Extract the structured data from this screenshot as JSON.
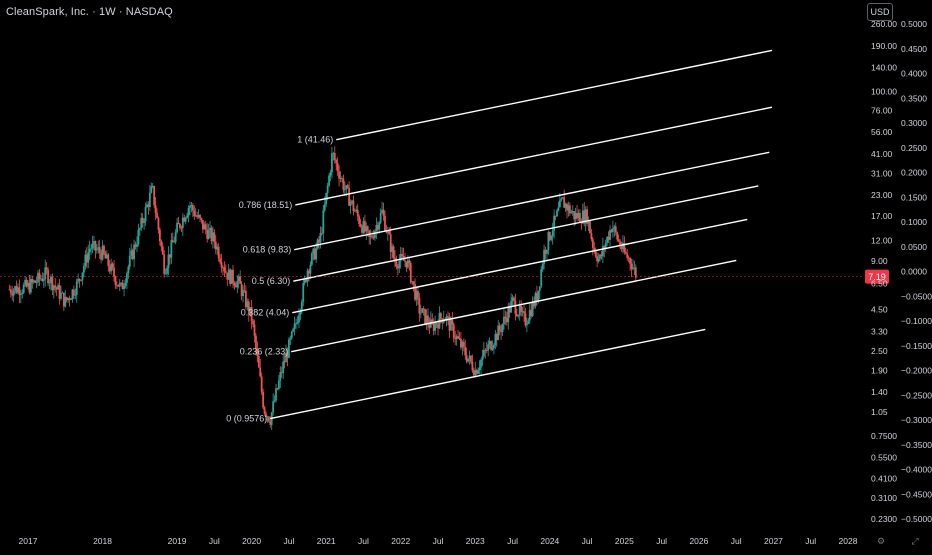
{
  "header": {
    "title": "CleanSpark, Inc. · 1W · NASDAQ"
  },
  "currency_button": {
    "label": "USD"
  },
  "colors": {
    "background": "#000000",
    "up_candle": "#26a69a",
    "down_candle": "#ef5350",
    "channel_lines": "#ffffff",
    "axis_text": "#d1d4dc",
    "price_tag": "#f23645"
  },
  "chart_data": {
    "type": "candlestick",
    "symbol": "CleanSpark, Inc.",
    "interval": "1W",
    "exchange": "NASDAQ",
    "price_scale": "log",
    "price_axis_ticks": [
      "260.00",
      "190.00",
      "140.00",
      "100.00",
      "76.00",
      "56.00",
      "41.00",
      "31.00",
      "23.00",
      "17.00",
      "12.00",
      "9.00",
      "6.50",
      "4.50",
      "3.30",
      "2.50",
      "1.90",
      "1.40",
      "1.05",
      "0.7500",
      "0.5500",
      "0.4100",
      "0.3100",
      "0.2300"
    ],
    "secondary_axis_ticks": [
      "0.5000",
      "0.4500",
      "0.4000",
      "0.3500",
      "0.3000",
      "0.2500",
      "0.2000",
      "0.1500",
      "0.1000",
      "0.0500",
      "0.0000",
      "−0.0500",
      "−0.1000",
      "−0.1500",
      "−0.2000",
      "−0.2500",
      "−0.3000",
      "−0.3500",
      "−0.4000",
      "−0.4500",
      "−0.5000"
    ],
    "time_axis_ticks": [
      "2017",
      "2018",
      "2019",
      "Jul",
      "2020",
      "Jul",
      "2021",
      "Jul",
      "2022",
      "Jul",
      "2023",
      "Jul",
      "2024",
      "Jul",
      "2025",
      "Jul",
      "2026",
      "Jul",
      "2027",
      "Jul",
      "2028"
    ],
    "last_price": "7.19",
    "fib_channel": {
      "levels": [
        {
          "level": "1",
          "price": "41.46",
          "label": "1 (41.46)"
        },
        {
          "level": "0.786",
          "price": "18.51",
          "label": "0.786 (18.51)"
        },
        {
          "level": "0.618",
          "price": "9.83",
          "label": "0.618 (9.83)"
        },
        {
          "level": "0.5",
          "price": "6.30",
          "label": "0.5 (6.30)"
        },
        {
          "level": "0.382",
          "price": "4.04",
          "label": "0.382 (4.04)"
        },
        {
          "level": "0.236",
          "price": "2.33",
          "label": "0.236 (2.33)"
        },
        {
          "level": "0",
          "price": "0.9576",
          "label": "0 (0.9576)"
        }
      ]
    },
    "price_path": [
      {
        "d": "2016-10",
        "p": 6.0
      },
      {
        "d": "2017-01",
        "p": 6.2
      },
      {
        "d": "2017-04",
        "p": 7.5
      },
      {
        "d": "2017-07",
        "p": 5.0
      },
      {
        "d": "2017-09",
        "p": 6.5
      },
      {
        "d": "2017-11",
        "p": 11.0
      },
      {
        "d": "2018-01",
        "p": 10.0
      },
      {
        "d": "2018-04",
        "p": 6.0
      },
      {
        "d": "2018-07",
        "p": 14.0
      },
      {
        "d": "2018-09",
        "p": 25.0
      },
      {
        "d": "2018-11",
        "p": 8.0
      },
      {
        "d": "2019-01",
        "p": 14.0
      },
      {
        "d": "2019-03",
        "p": 20.0
      },
      {
        "d": "2019-05",
        "p": 15.0
      },
      {
        "d": "2019-07",
        "p": 12.0
      },
      {
        "d": "2019-09",
        "p": 7.5
      },
      {
        "d": "2019-11",
        "p": 6.5
      },
      {
        "d": "2020-01",
        "p": 4.0
      },
      {
        "d": "2020-03",
        "p": 1.1
      },
      {
        "d": "2020-04",
        "p": 0.9576
      },
      {
        "d": "2020-06",
        "p": 2.0
      },
      {
        "d": "2020-08",
        "p": 3.5
      },
      {
        "d": "2020-10",
        "p": 8.0
      },
      {
        "d": "2020-12",
        "p": 12.0
      },
      {
        "d": "2021-02",
        "p": 41.46
      },
      {
        "d": "2021-04",
        "p": 25.0
      },
      {
        "d": "2021-06",
        "p": 17.0
      },
      {
        "d": "2021-08",
        "p": 12.0
      },
      {
        "d": "2021-10",
        "p": 18.0
      },
      {
        "d": "2021-12",
        "p": 9.0
      },
      {
        "d": "2022-02",
        "p": 9.0
      },
      {
        "d": "2022-04",
        "p": 4.5
      },
      {
        "d": "2022-06",
        "p": 3.5
      },
      {
        "d": "2022-08",
        "p": 4.2
      },
      {
        "d": "2022-10",
        "p": 3.0
      },
      {
        "d": "2022-12",
        "p": 2.2
      },
      {
        "d": "2023-01",
        "p": 1.9
      },
      {
        "d": "2023-03",
        "p": 2.6
      },
      {
        "d": "2023-05",
        "p": 3.4
      },
      {
        "d": "2023-07",
        "p": 5.0
      },
      {
        "d": "2023-09",
        "p": 3.8
      },
      {
        "d": "2023-11",
        "p": 5.5
      },
      {
        "d": "2023-12",
        "p": 10.0
      },
      {
        "d": "2024-01",
        "p": 13.0
      },
      {
        "d": "2024-03",
        "p": 21.0
      },
      {
        "d": "2024-05",
        "p": 17.0
      },
      {
        "d": "2024-07",
        "p": 17.0
      },
      {
        "d": "2024-08",
        "p": 11.0
      },
      {
        "d": "2024-09",
        "p": 9.0
      },
      {
        "d": "2024-11",
        "p": 15.0
      },
      {
        "d": "2024-12",
        "p": 12.0
      },
      {
        "d": "2025-01",
        "p": 10.0
      },
      {
        "d": "2025-02",
        "p": 9.0
      },
      {
        "d": "2025-03",
        "p": 7.19
      }
    ]
  }
}
